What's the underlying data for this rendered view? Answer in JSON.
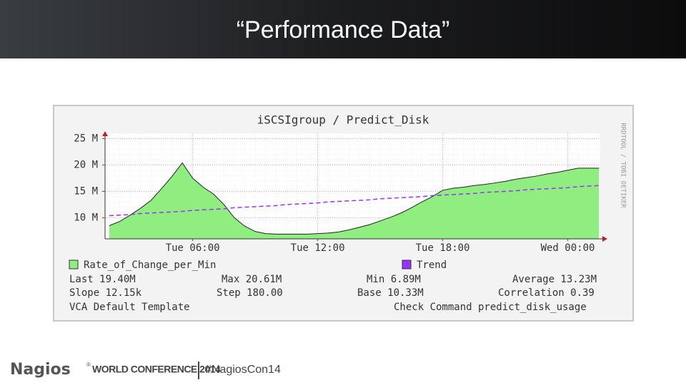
{
  "slide": {
    "title": "“Performance Data”",
    "footer": {
      "brand": "Nagios",
      "registered": "®",
      "event": "WORLD CONFERENCE 2014",
      "hashtag": "#NagiosCon14"
    }
  },
  "chart_data": {
    "type": "area",
    "title": "iSCSIgroup / Predict_Disk",
    "watermark": "RRDTOOL / TOBI OETIKER",
    "categories": [
      null,
      null,
      null,
      null,
      null,
      null,
      null,
      null,
      "Tue 06:00",
      null,
      null,
      null,
      null,
      null,
      null,
      null,
      null,
      null,
      null,
      null,
      "Tue 12:00",
      null,
      null,
      null,
      null,
      null,
      null,
      null,
      null,
      null,
      null,
      null,
      "Tue 18:00",
      null,
      null,
      null,
      null,
      null,
      null,
      null,
      null,
      null,
      null,
      null,
      "Wed 00:00",
      null,
      null,
      null
    ],
    "series": [
      {
        "name": "Rate_of_Change_per_Min",
        "color": "#90ee80",
        "mark": "area",
        "values": [
          8.5,
          9.3,
          10.5,
          11.8,
          13.3,
          15.5,
          17.8,
          20.4,
          17.5,
          15.8,
          14.5,
          12.5,
          10,
          8.4,
          7.4,
          7.0,
          6.9,
          6.9,
          6.9,
          6.9,
          7.0,
          7.1,
          7.3,
          7.7,
          8.2,
          8.7,
          9.4,
          10.1,
          10.9,
          11.9,
          13.0,
          14.0,
          15.2,
          15.6,
          15.8,
          16.1,
          16.3,
          16.6,
          16.9,
          17.3,
          17.6,
          17.9,
          18.3,
          18.6,
          19.0,
          19.4,
          19.4,
          19.4
        ]
      },
      {
        "name": "Trend",
        "color": "#9b30ff",
        "mark": "line",
        "style": "dashed",
        "values": [
          10.4,
          10.5,
          10.6,
          10.8,
          10.9,
          11.0,
          11.1,
          11.2,
          11.4,
          11.5,
          11.6,
          11.7,
          11.9,
          12.0,
          12.1,
          12.2,
          12.3,
          12.5,
          12.6,
          12.7,
          12.8,
          13.0,
          13.1,
          13.2,
          13.3,
          13.4,
          13.6,
          13.7,
          13.8,
          13.9,
          14.0,
          14.2,
          14.3,
          14.4,
          14.5,
          14.6,
          14.8,
          14.9,
          15.0,
          15.1,
          15.3,
          15.4,
          15.5,
          15.6,
          15.7,
          15.9,
          16.0,
          16.1
        ]
      }
    ],
    "ylim": [
      6,
      26
    ],
    "yticks": [
      {
        "value": 10,
        "label": "10 M"
      },
      {
        "value": 15,
        "label": "15 M"
      },
      {
        "value": 20,
        "label": "20 M"
      },
      {
        "value": 25,
        "label": "25 M"
      }
    ],
    "grid": true,
    "legend_rows": [
      [
        "Last 19.40M",
        "Max 20.61M",
        "Min 6.89M",
        "Average 13.23M"
      ],
      [
        "Slope 12.15k",
        "Step 180.00",
        "Base 10.33M",
        "Correlation 0.39"
      ],
      [
        "VCA Default Template",
        "Check Command predict_disk_usage"
      ]
    ]
  }
}
